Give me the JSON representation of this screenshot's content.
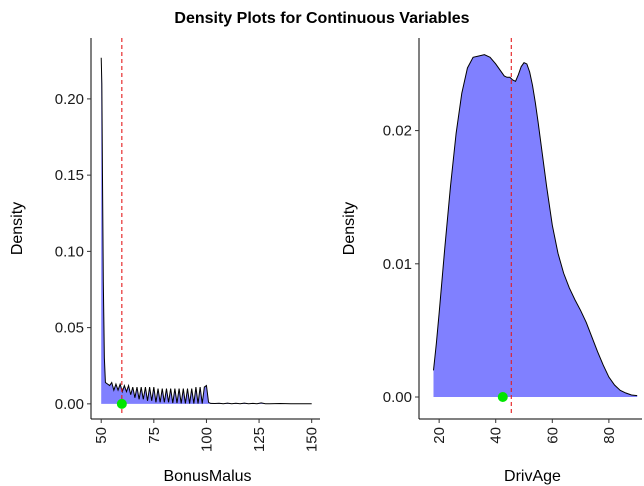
{
  "title": "Density Plots for Continuous Variables",
  "colors": {
    "fill": "#8080ff",
    "curve": "#000000",
    "mean_line": "#e41a1c",
    "marker": "#00e600"
  },
  "chart_data": [
    {
      "type": "area",
      "variable": "BonusMalus",
      "xlabel": "BonusMalus",
      "ylabel": "Density",
      "xlim": [
        48,
        153
      ],
      "ylim": [
        -0.006,
        0.236
      ],
      "xticks": [
        50,
        75,
        100,
        125,
        150
      ],
      "xtick_labels": [
        "50",
        "75",
        "100",
        "125",
        "150"
      ],
      "yticks": [
        0.0,
        0.05,
        0.1,
        0.15,
        0.2
      ],
      "ytick_labels": [
        "0.00",
        "0.05",
        "0.10",
        "0.15",
        "0.20"
      ],
      "x_tick_label_rotation": 90,
      "mean_line_x": 59.8,
      "marker": {
        "x": 59.8,
        "y": 0.0
      },
      "density": {
        "x": [
          50,
          50.3,
          50.6,
          51,
          51.5,
          52,
          53,
          54,
          55,
          56,
          57,
          58,
          59,
          60,
          61,
          62,
          63,
          64,
          65,
          66,
          67,
          68,
          69,
          70,
          71,
          72,
          73,
          74,
          75,
          76,
          77,
          78,
          79,
          80,
          81,
          82,
          83,
          84,
          85,
          86,
          87,
          88,
          89,
          90,
          91,
          92,
          93,
          94,
          95,
          96,
          97,
          98,
          99,
          100,
          101,
          102,
          104,
          106,
          108,
          110,
          112,
          114,
          116,
          118,
          120,
          122,
          124,
          126,
          128,
          130,
          135,
          140,
          145,
          150
        ],
        "y": [
          0.227,
          0.21,
          0.15,
          0.08,
          0.03,
          0.014,
          0.013,
          0.012,
          0.014,
          0.009,
          0.013,
          0.009,
          0.013,
          0.008,
          0.012,
          0.008,
          0.012,
          0.006,
          0.011,
          0.004,
          0.011,
          0.003,
          0.011,
          0.003,
          0.011,
          0.002,
          0.011,
          0.002,
          0.011,
          0.001,
          0.01,
          0.001,
          0.01,
          0.001,
          0.01,
          0.001,
          0.01,
          0.0005,
          0.01,
          0.0005,
          0.01,
          0.0003,
          0.01,
          0.0003,
          0.01,
          0.0002,
          0.01,
          0.0002,
          0.011,
          0.0002,
          0.011,
          0.0002,
          0.011,
          0.012,
          0.001,
          0.0003,
          0.0002,
          0.0004,
          0.0001,
          0.0005,
          0.0001,
          0.0004,
          0.0001,
          0.0005,
          0.0001,
          0.0003,
          0.0001,
          0.0006,
          0.0001,
          0.0001,
          0.0002,
          0.0001,
          0.0001,
          0.0001
        ]
      }
    },
    {
      "type": "area",
      "variable": "DrivAge",
      "xlabel": "DrivAge",
      "ylabel": "Density",
      "xlim": [
        15,
        91
      ],
      "ylim": [
        -0.0012,
        0.0265
      ],
      "xticks": [
        20,
        40,
        60,
        80
      ],
      "xtick_labels": [
        "20",
        "40",
        "60",
        "80"
      ],
      "yticks": [
        0.0,
        0.01,
        0.02
      ],
      "ytick_labels": [
        "0.00",
        "0.01",
        "0.02"
      ],
      "x_tick_label_rotation": 90,
      "mean_line_x": 45.5,
      "marker": {
        "x": 42.5,
        "y": 0.0
      },
      "density": {
        "x": [
          18,
          19,
          20,
          22,
          24,
          26,
          28,
          30,
          32,
          34,
          36,
          38,
          40,
          42,
          43,
          44,
          45,
          46,
          47,
          48,
          49,
          50,
          51,
          52,
          53,
          54,
          55,
          56,
          58,
          60,
          62,
          64,
          66,
          68,
          70,
          72,
          74,
          76,
          78,
          80,
          82,
          84,
          86,
          88,
          90
        ],
        "y": [
          0.002,
          0.004,
          0.0063,
          0.0112,
          0.0158,
          0.0198,
          0.0228,
          0.0247,
          0.0255,
          0.0256,
          0.0257,
          0.0255,
          0.025,
          0.0244,
          0.0241,
          0.024,
          0.024,
          0.0238,
          0.0237,
          0.0242,
          0.0248,
          0.0251,
          0.025,
          0.0244,
          0.0234,
          0.0221,
          0.0206,
          0.019,
          0.0158,
          0.0129,
          0.0108,
          0.0093,
          0.0082,
          0.0073,
          0.0065,
          0.0056,
          0.0045,
          0.0034,
          0.0024,
          0.0015,
          0.0009,
          0.0005,
          0.0003,
          0.00015,
          0.0001
        ]
      }
    }
  ]
}
